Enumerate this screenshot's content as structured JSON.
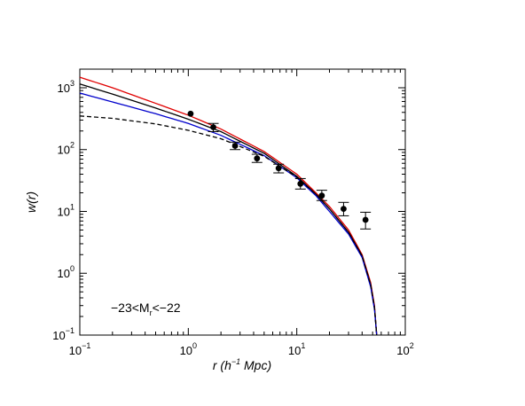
{
  "chart_data": {
    "type": "line",
    "title": "",
    "xlabel": "r (h⁻¹ Mpc)",
    "xlabel_parts": {
      "main": "r (h",
      "sup": "−1",
      "tail": " Mpc)"
    },
    "ylabel": "w(r)",
    "xscale": "log",
    "yscale": "log",
    "xlim": [
      0.1,
      100
    ],
    "ylim": [
      0.1,
      2000
    ],
    "x_ticks": [
      {
        "value": 0.1,
        "base": "10",
        "exp": "−1"
      },
      {
        "value": 1,
        "base": "10",
        "exp": "0"
      },
      {
        "value": 10,
        "base": "10",
        "exp": "1"
      },
      {
        "value": 100,
        "base": "10",
        "exp": "2"
      }
    ],
    "y_ticks": [
      {
        "value": 0.1,
        "base": "10",
        "exp": "−1"
      },
      {
        "value": 1,
        "base": "10",
        "exp": "0"
      },
      {
        "value": 10,
        "base": "10",
        "exp": "1"
      },
      {
        "value": 100,
        "base": "10",
        "exp": "2"
      },
      {
        "value": 1000,
        "base": "10",
        "exp": "3"
      }
    ],
    "grid": false,
    "annotation": {
      "base": "−23<M",
      "sub": "r",
      "tail": "<−22",
      "position": "bottom-left"
    },
    "series": [
      {
        "style": "solid",
        "color": "#e00000",
        "x": [
          0.1,
          0.2,
          0.5,
          1,
          2,
          5,
          10,
          15,
          20,
          30,
          40,
          48,
          52,
          54.5
        ],
        "y": [
          1480,
          1000,
          560,
          360,
          215,
          93,
          40,
          20,
          12,
          5,
          2,
          0.7,
          0.3,
          0.1
        ]
      },
      {
        "style": "solid",
        "color": "#000000",
        "x": [
          0.1,
          0.2,
          0.5,
          1,
          2,
          5,
          10,
          15,
          20,
          30,
          40,
          48,
          52,
          54.5
        ],
        "y": [
          1150,
          790,
          470,
          310,
          195,
          87,
          37,
          19,
          11,
          4.6,
          1.9,
          0.65,
          0.28,
          0.1
        ]
      },
      {
        "style": "solid",
        "color": "#0000cc",
        "x": [
          0.1,
          0.2,
          0.5,
          1,
          2,
          5,
          10,
          15,
          20,
          30,
          40,
          48,
          52,
          54.5
        ],
        "y": [
          820,
          590,
          380,
          265,
          170,
          80,
          35,
          18,
          10,
          4.3,
          1.8,
          0.6,
          0.26,
          0.1
        ]
      },
      {
        "style": "dashed",
        "color": "#000000",
        "x": [
          0.1,
          0.2,
          0.5,
          1,
          2,
          5,
          10,
          15,
          20,
          30,
          40,
          48,
          52,
          54.5
        ],
        "y": [
          350,
          320,
          260,
          205,
          150,
          78,
          36,
          19,
          11,
          4.6,
          1.9,
          0.65,
          0.28,
          0.1
        ]
      }
    ],
    "points": [
      {
        "x": 1.05,
        "y": 380,
        "err_low": 380,
        "err_high": 380
      },
      {
        "x": 1.7,
        "y": 230,
        "err_low": 195,
        "err_high": 265
      },
      {
        "x": 2.7,
        "y": 115,
        "err_low": 100,
        "err_high": 132
      },
      {
        "x": 4.3,
        "y": 72,
        "err_low": 62,
        "err_high": 84
      },
      {
        "x": 6.8,
        "y": 50,
        "err_low": 42,
        "err_high": 58
      },
      {
        "x": 10.8,
        "y": 28,
        "err_low": 23,
        "err_high": 34
      },
      {
        "x": 17,
        "y": 18,
        "err_low": 15,
        "err_high": 22
      },
      {
        "x": 27,
        "y": 11,
        "err_low": 8.5,
        "err_high": 14
      },
      {
        "x": 43,
        "y": 7.3,
        "err_low": 5.2,
        "err_high": 9.7
      }
    ]
  }
}
